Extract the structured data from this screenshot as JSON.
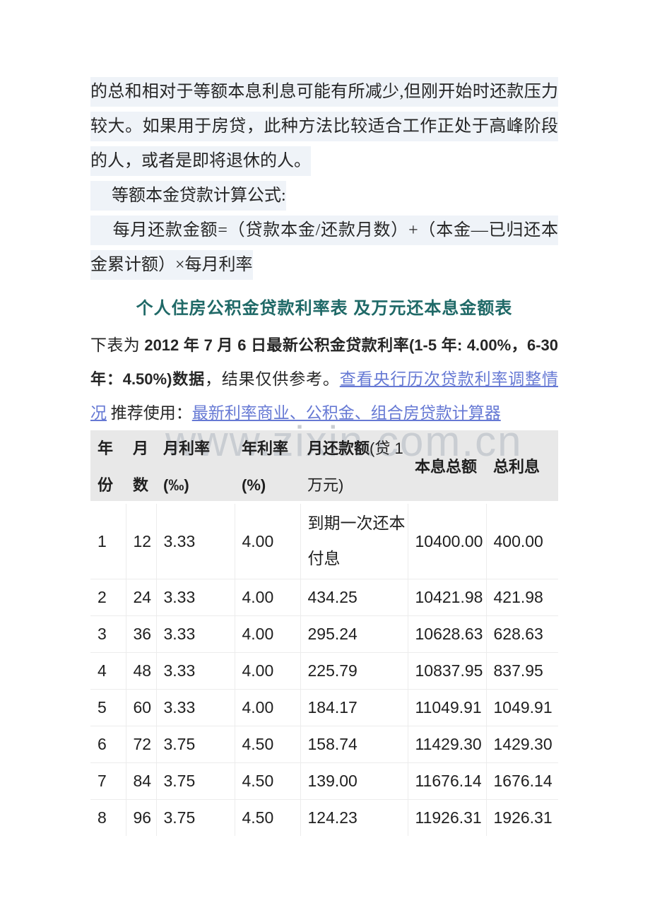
{
  "paragraphs": {
    "p1": "的总和相对于等额本息利息可能有所减少,但刚开始时还款压力较大。如果用于房贷，此种方法比较适合工作正处于高峰阶段的人，或者是即将退休的人。",
    "p2": "　 等额本金贷款计算公式:",
    "p3": "　 每月还款金额=（贷款本金/还款月数）+（本金—已归还本金累计额）×每月利率"
  },
  "heading": "个人住房公积金贷款利率表 及万元还本息金额表",
  "intro": {
    "prefix": "下表为 ",
    "bold": "2012 年 7 月 6 日最新公积金贷款利率(1-5 年: 4.00%，6-30 年：4.50%)数据",
    "mid": "，结果仅供参考。",
    "link1": "查看央行历次贷款利率调整情况",
    "between": " 推荐使用：",
    "link2": "最新利率商业、公积金、组合房贷款计算器"
  },
  "watermark": "www.zixin.com.cn",
  "table": {
    "headers": {
      "col1": "年\n份",
      "col2": "月\n数",
      "col3": "月利率\n(‰)",
      "col4": "年利率\n(%)",
      "col5_bold": "月还款额",
      "col5_rest": "(贷 1\n万元)",
      "col6": "本息总额",
      "col7": "总利息"
    },
    "rows": [
      [
        "1",
        "12",
        "3.33",
        "4.00",
        "到期一次还本\n付息",
        "10400.00",
        "400.00"
      ],
      [
        "2",
        "24",
        "3.33",
        "4.00",
        "434.25",
        "10421.98",
        "421.98"
      ],
      [
        "3",
        "36",
        "3.33",
        "4.00",
        "295.24",
        "10628.63",
        "628.63"
      ],
      [
        "4",
        "48",
        "3.33",
        "4.00",
        "225.79",
        "10837.95",
        "837.95"
      ],
      [
        "5",
        "60",
        "3.33",
        "4.00",
        "184.17",
        "11049.91",
        "1049.91"
      ],
      [
        "6",
        "72",
        "3.75",
        "4.50",
        "158.74",
        "11429.30",
        "1429.30"
      ],
      [
        "7",
        "84",
        "3.75",
        "4.50",
        "139.00",
        "11676.14",
        "1676.14"
      ],
      [
        "8",
        "96",
        "3.75",
        "4.50",
        "124.23",
        "11926.31",
        "1926.31"
      ]
    ]
  },
  "colors": {
    "heading_teal": "#1f6967",
    "link_blue": "#6679d4",
    "text_highlight": "#eff3f8",
    "table_header_bg": "#e8e8e8",
    "watermark_grey": "#c9cdd2"
  }
}
